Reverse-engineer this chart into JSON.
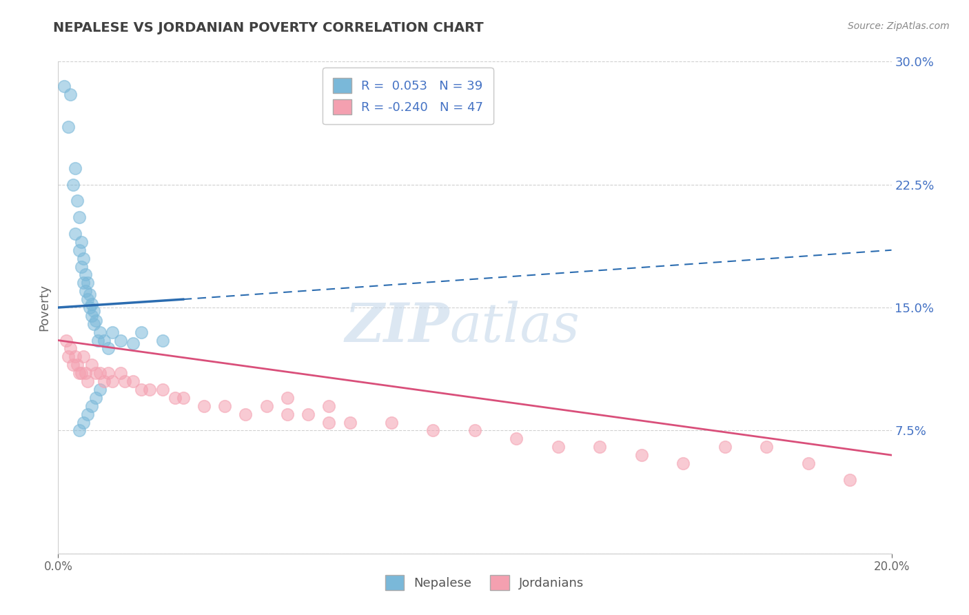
{
  "title": "NEPALESE VS JORDANIAN POVERTY CORRELATION CHART",
  "source": "Source: ZipAtlas.com",
  "ylabel": "Poverty",
  "xlim": [
    0,
    20
  ],
  "ylim": [
    0,
    30
  ],
  "yticks": [
    0,
    7.5,
    15.0,
    22.5,
    30.0
  ],
  "ytick_labels": [
    "",
    "7.5%",
    "15.0%",
    "22.5%",
    "30.0%"
  ],
  "nepalese_color": "#7ab8d9",
  "jordanian_color": "#f4a0b0",
  "nepalese_line_color": "#2b6cb0",
  "jordanian_line_color": "#d94f7a",
  "legend_nepalese_label": "R =  0.053   N = 39",
  "legend_jordanian_label": "R = -0.240   N = 47",
  "legend_nepalese_entry": "Nepalese",
  "legend_jordanian_entry": "Jordanians",
  "watermark_zip": "ZIP",
  "watermark_atlas": "atlas",
  "nepalese_x": [
    0.15,
    0.3,
    0.25,
    0.4,
    0.35,
    0.45,
    0.5,
    0.4,
    0.55,
    0.5,
    0.6,
    0.55,
    0.65,
    0.6,
    0.7,
    0.65,
    0.75,
    0.7,
    0.8,
    0.75,
    0.85,
    0.8,
    0.9,
    0.85,
    1.0,
    0.95,
    1.1,
    1.2,
    1.3,
    1.5,
    1.8,
    2.0,
    2.5,
    1.0,
    0.9,
    0.8,
    0.7,
    0.6,
    0.5
  ],
  "nepalese_y": [
    28.5,
    28.0,
    26.0,
    23.5,
    22.5,
    21.5,
    20.5,
    19.5,
    19.0,
    18.5,
    18.0,
    17.5,
    17.0,
    16.5,
    16.5,
    16.0,
    15.8,
    15.5,
    15.2,
    15.0,
    14.8,
    14.5,
    14.2,
    14.0,
    13.5,
    13.0,
    13.0,
    12.5,
    13.5,
    13.0,
    12.8,
    13.5,
    13.0,
    10.0,
    9.5,
    9.0,
    8.5,
    8.0,
    7.5
  ],
  "jordanian_x": [
    0.2,
    0.3,
    0.25,
    0.4,
    0.35,
    0.45,
    0.5,
    0.55,
    0.6,
    0.65,
    0.7,
    0.8,
    0.9,
    1.0,
    1.1,
    1.2,
    1.3,
    1.5,
    1.6,
    1.8,
    2.0,
    2.2,
    2.5,
    2.8,
    3.0,
    3.5,
    4.0,
    4.5,
    5.0,
    5.5,
    6.0,
    6.5,
    7.0,
    8.0,
    9.0,
    10.0,
    11.0,
    12.0,
    13.0,
    14.0,
    15.0,
    16.0,
    17.0,
    18.0,
    19.0,
    5.5,
    6.5
  ],
  "jordanian_y": [
    13.0,
    12.5,
    12.0,
    12.0,
    11.5,
    11.5,
    11.0,
    11.0,
    12.0,
    11.0,
    10.5,
    11.5,
    11.0,
    11.0,
    10.5,
    11.0,
    10.5,
    11.0,
    10.5,
    10.5,
    10.0,
    10.0,
    10.0,
    9.5,
    9.5,
    9.0,
    9.0,
    8.5,
    9.0,
    8.5,
    8.5,
    8.0,
    8.0,
    8.0,
    7.5,
    7.5,
    7.0,
    6.5,
    6.5,
    6.0,
    5.5,
    6.5,
    6.5,
    5.5,
    4.5,
    9.5,
    9.0
  ]
}
